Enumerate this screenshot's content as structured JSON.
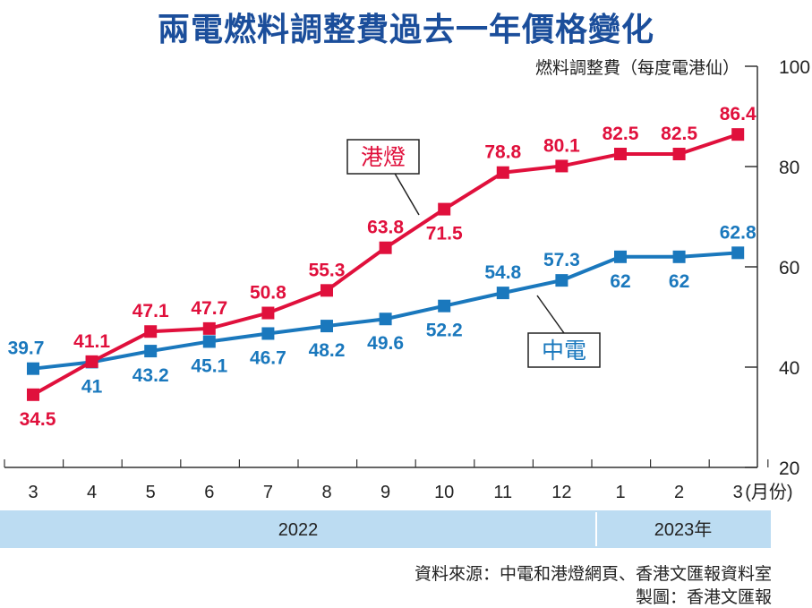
{
  "chart_data": {
    "type": "line",
    "title": "兩電燃料調整費過去一年價格變化",
    "ylabel": "燃料調整費（每度電港仙）",
    "xlabel": "(月份)",
    "categories": [
      "3",
      "4",
      "5",
      "6",
      "7",
      "8",
      "9",
      "10",
      "11",
      "12",
      "1",
      "2",
      "3"
    ],
    "year_bands": [
      {
        "label": "2022",
        "months": 10
      },
      {
        "label": "2023年",
        "months": 3
      }
    ],
    "ylim": [
      20,
      100
    ],
    "yticks": [
      20,
      40,
      60,
      80,
      100
    ],
    "series": [
      {
        "name": "港燈",
        "color": "#e0103c",
        "values": [
          34.5,
          41.1,
          47.1,
          47.7,
          50.8,
          55.3,
          63.8,
          71.5,
          78.8,
          80.1,
          82.5,
          82.5,
          86.4
        ]
      },
      {
        "name": "中電",
        "color": "#1a78bd",
        "values": [
          39.7,
          41,
          43.2,
          45.1,
          46.7,
          48.2,
          49.6,
          52.2,
          54.8,
          57.3,
          62,
          62,
          62.8
        ]
      }
    ],
    "labels": {
      "hk": [
        "34.5",
        "41.1",
        "47.1",
        "47.7",
        "50.8",
        "55.3",
        "63.8",
        "71.5",
        "78.8",
        "80.1",
        "82.5",
        "82.5",
        "86.4"
      ],
      "clp": [
        "39.7",
        "41",
        "43.2",
        "45.1",
        "46.7",
        "48.2",
        "49.6",
        "52.2",
        "54.8",
        "57.3",
        "62",
        "62",
        "62.8"
      ]
    }
  },
  "footer": {
    "source": "資料來源：中電和港燈網頁、香港文匯報資料室",
    "credit": "製圖：香港文匯報"
  }
}
